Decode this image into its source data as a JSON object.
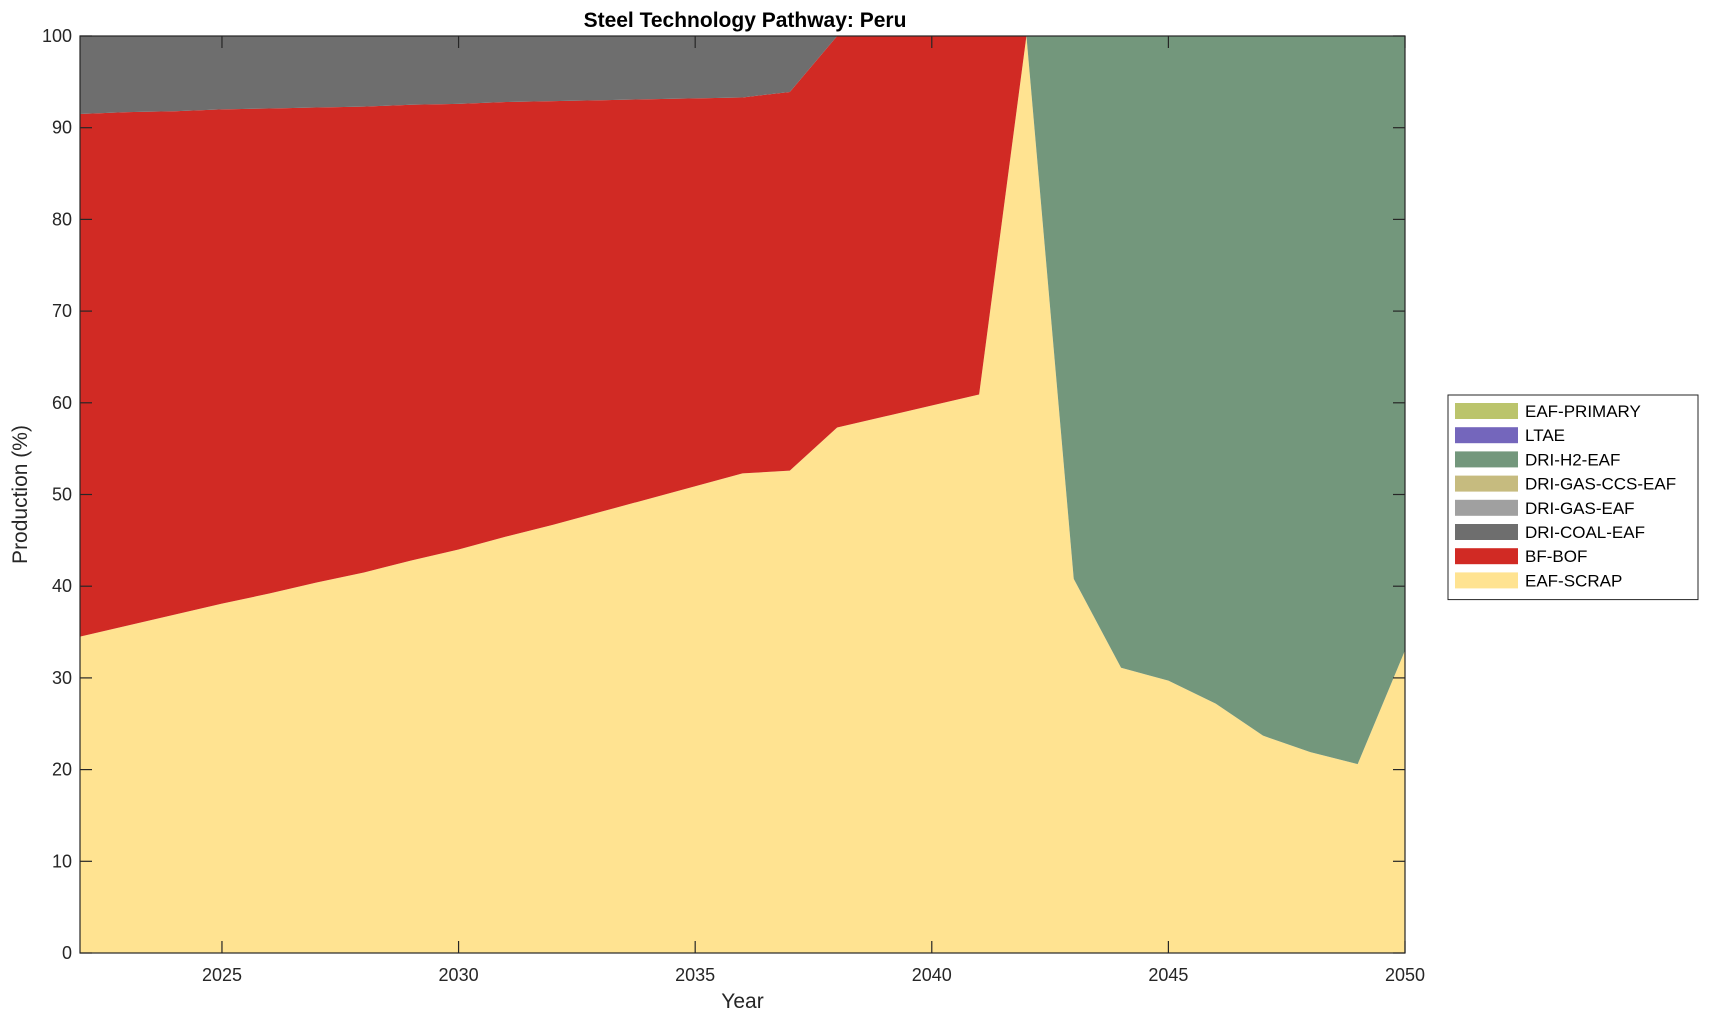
{
  "chart_data": {
    "type": "area",
    "stacked": true,
    "title": "Steel Technology Pathway: Peru",
    "xlabel": "Year",
    "ylabel": "Production (%)",
    "xlim": [
      2022,
      2050
    ],
    "ylim": [
      0,
      100
    ],
    "x_ticks": [
      2025,
      2030,
      2035,
      2040,
      2045,
      2050
    ],
    "y_ticks": [
      0,
      10,
      20,
      30,
      40,
      50,
      60,
      70,
      80,
      90,
      100
    ],
    "grid": false,
    "legend_position": "right",
    "x": [
      2022,
      2023,
      2024,
      2025,
      2026,
      2027,
      2028,
      2029,
      2030,
      2031,
      2032,
      2033,
      2034,
      2035,
      2036,
      2037,
      2038,
      2039,
      2040,
      2041,
      2042,
      2043,
      2044,
      2045,
      2046,
      2047,
      2048,
      2049,
      2050
    ],
    "series": [
      {
        "name": "EAF-SCRAP",
        "color": "#FFE391",
        "values": [
          34.5,
          35.7,
          36.9,
          38.1,
          39.2,
          40.4,
          41.5,
          42.8,
          44.0,
          45.4,
          46.7,
          48.1,
          49.5,
          50.9,
          52.3,
          52.6,
          57.3,
          58.5,
          59.7,
          60.9,
          100,
          40.8,
          31.1,
          29.7,
          27.2,
          23.7,
          21.9,
          20.6,
          33.0
        ]
      },
      {
        "name": "BF-BOF",
        "color": "#D12A24",
        "values": [
          57.0,
          56.0,
          54.9,
          53.9,
          52.9,
          51.8,
          50.8,
          49.7,
          48.6,
          47.4,
          46.2,
          44.9,
          43.6,
          42.3,
          41.0,
          41.3,
          42.7,
          41.5,
          40.3,
          39.1,
          0,
          0,
          0,
          0,
          0,
          0,
          0,
          0,
          0
        ]
      },
      {
        "name": "DRI-COAL-EAF",
        "color": "#6E6E6E",
        "values": [
          8.5,
          8.3,
          8.2,
          8.0,
          7.9,
          7.8,
          7.7,
          7.5,
          7.4,
          7.2,
          7.1,
          7.0,
          6.9,
          6.8,
          6.7,
          6.1,
          0,
          0,
          0,
          0,
          0,
          0,
          0,
          0,
          0,
          0,
          0,
          0,
          0
        ]
      },
      {
        "name": "DRI-GAS-EAF",
        "color": "#A0A0A0",
        "values": [
          0,
          0,
          0,
          0,
          0,
          0,
          0,
          0,
          0,
          0,
          0,
          0,
          0,
          0,
          0,
          0,
          0,
          0,
          0,
          0,
          0,
          0,
          0,
          0,
          0,
          0,
          0,
          0,
          0
        ]
      },
      {
        "name": "DRI-GAS-CCS-EAF",
        "color": "#C6BB7F",
        "values": [
          0,
          0,
          0,
          0,
          0,
          0,
          0,
          0,
          0,
          0,
          0,
          0,
          0,
          0,
          0,
          0,
          0,
          0,
          0,
          0,
          0,
          0,
          0,
          0,
          0,
          0,
          0,
          0,
          0
        ]
      },
      {
        "name": "DRI-H2-EAF",
        "color": "#73977C",
        "values": [
          0,
          0,
          0,
          0,
          0,
          0,
          0,
          0,
          0,
          0,
          0,
          0,
          0,
          0,
          0,
          0,
          0,
          0,
          0,
          0,
          0,
          59.2,
          68.9,
          70.3,
          72.8,
          76.3,
          78.1,
          79.4,
          67.0
        ]
      },
      {
        "name": "LTAE",
        "color": "#7466BC",
        "values": [
          0,
          0,
          0,
          0,
          0,
          0,
          0,
          0,
          0,
          0,
          0,
          0,
          0,
          0,
          0,
          0,
          0,
          0,
          0,
          0,
          0,
          0,
          0,
          0,
          0,
          0,
          0,
          0,
          0
        ]
      },
      {
        "name": "EAF-PRIMARY",
        "color": "#BBC46C",
        "values": [
          0,
          0,
          0,
          0,
          0,
          0,
          0,
          0,
          0,
          0,
          0,
          0,
          0,
          0,
          0,
          0,
          0,
          0,
          0,
          0,
          0,
          0,
          0,
          0,
          0,
          0,
          0,
          0,
          0
        ]
      }
    ],
    "legend_order": [
      "EAF-PRIMARY",
      "LTAE",
      "DRI-H2-EAF",
      "DRI-GAS-CCS-EAF",
      "DRI-GAS-EAF",
      "DRI-COAL-EAF",
      "BF-BOF",
      "EAF-SCRAP"
    ]
  }
}
